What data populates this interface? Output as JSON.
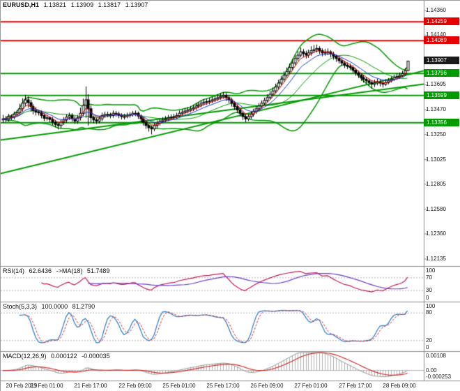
{
  "header": {
    "symbol": "EURUSD,H1",
    "open": "1.13821",
    "high": "1.13909",
    "low": "1.13817",
    "close": "1.13907"
  },
  "colors": {
    "background": "#ffffff",
    "candle_up_fill": "#ffffff",
    "candle_down_fill": "#000000",
    "candle_border": "#000000",
    "band_green": "#009b00",
    "trend_green": "#009b00",
    "resistance_red": "#e60000",
    "support_green": "#009b00",
    "current_price_badge": "#1a1a1a",
    "ma_fast_red": "#d40000",
    "ma_slow_blue": "#2033cc",
    "rsi_line": "#c2185b",
    "rsi_ma": "#6a3fc9",
    "stoch_main": "#2979c9",
    "stoch_signal": "#d32f2f",
    "macd_hist": "#b0b0b0",
    "macd_outline": "#9a9a9a",
    "macd_signal": "#d32f2f",
    "guide_dash": "#b5b5b5",
    "panel_border": "#8c8c8c",
    "axis_text": "#1a1a1a"
  },
  "panels": {
    "rsi": {
      "name": "RSI(14)",
      "value": "62.6436",
      "ma_name": "->MA(18)",
      "ma_value": "51.7489",
      "period": 14,
      "ma_period": 18,
      "guide_levels": [
        70,
        30
      ],
      "axis": [
        {
          "text": "100",
          "v": 100
        },
        {
          "text": "70",
          "v": 70
        },
        {
          "text": "30",
          "v": 30
        },
        {
          "text": "0",
          "v": 0
        }
      ]
    },
    "stoch": {
      "name": "Stoch(5,3,3)",
      "value": "100.0000",
      "signal_value": "81.2790",
      "k": 5,
      "slowing": 3,
      "d": 3,
      "guide_levels": [
        80,
        20
      ],
      "axis": [
        {
          "text": "100",
          "v": 100
        },
        {
          "text": "80",
          "v": 80
        },
        {
          "text": "20",
          "v": 20
        },
        {
          "text": "0",
          "v": 0
        }
      ]
    },
    "macd": {
      "name": "MACD(12,26,9)",
      "value": "0.000122",
      "signal_value": "-0.000035",
      "fast": 12,
      "slow": 26,
      "signal": 9,
      "axis": [
        {
          "text": "0.00108",
          "v": 0.00108
        },
        {
          "text": "0.00",
          "v": 0
        },
        {
          "text": "-0.000253",
          "v": -0.000253
        }
      ]
    }
  },
  "chart_data": {
    "type": "candlestick",
    "symbol": "EURUSD",
    "timeframe": "H1",
    "title": "EURUSD,H1 1.13821 1.13909 1.13817 1.13907",
    "price_axis": {
      "ticks": [
        {
          "text": "1.14360",
          "price": 1.1436
        },
        {
          "text": "1.14140",
          "price": 1.1414
        },
        {
          "text": "1.13695",
          "price": 1.13695
        },
        {
          "text": "1.13470",
          "price": 1.1347
        },
        {
          "text": "1.13250",
          "price": 1.1325
        },
        {
          "text": "1.13025",
          "price": 1.13025
        },
        {
          "text": "1.12805",
          "price": 1.12805
        },
        {
          "text": "1.12580",
          "price": 1.1258
        },
        {
          "text": "1.12360",
          "price": 1.1236
        },
        {
          "text": "1.12135",
          "price": 1.12135
        }
      ]
    },
    "badges": [
      {
        "text": "1.14259",
        "price": 1.14259,
        "color": "red",
        "role": "resistance"
      },
      {
        "text": "1.14089",
        "price": 1.14089,
        "color": "red",
        "role": "resistance"
      },
      {
        "text": "1.13907",
        "price": 1.13907,
        "color": "black",
        "role": "current-price"
      },
      {
        "text": "1.13796",
        "price": 1.13796,
        "color": "green",
        "role": "support"
      },
      {
        "text": "1.13599",
        "price": 1.13599,
        "color": "green",
        "role": "support"
      },
      {
        "text": "1.13356",
        "price": 1.13356,
        "color": "green",
        "role": "support"
      }
    ],
    "levels": {
      "resistance": [
        1.14259,
        1.14089
      ],
      "support": [
        1.13796,
        1.13599,
        1.13356
      ]
    },
    "trend_lines": [
      {
        "price_left": 1.129,
        "price_right": 1.1382
      },
      {
        "price_left": 1.132,
        "price_right": 1.137
      }
    ],
    "overlays": {
      "bollinger_period": 20,
      "bollinger_dev": 2,
      "ma_fast": 5,
      "ma_slow": 10
    },
    "time_labels": [
      {
        "index": 0,
        "text": "20 Feb 2019"
      },
      {
        "index": 16,
        "text": "21 Feb 01:00"
      },
      {
        "index": 32,
        "text": "21 Feb 17:00"
      },
      {
        "index": 48,
        "text": "22 Feb 09:00"
      },
      {
        "index": 64,
        "text": "25 Feb 01:00"
      },
      {
        "index": 80,
        "text": "25 Feb 17:00"
      },
      {
        "index": 96,
        "text": "26 Feb 09:00"
      },
      {
        "index": 112,
        "text": "27 Feb 01:00"
      },
      {
        "index": 128,
        "text": "27 Feb 17:00"
      },
      {
        "index": 144,
        "text": "28 Feb 09:00"
      }
    ],
    "candles": [
      [
        1.1338,
        1.13425,
        1.13355,
        1.1339
      ],
      [
        1.1339,
        1.13415,
        1.1336,
        1.13385
      ],
      [
        1.13385,
        1.13435,
        1.13365,
        1.1341
      ],
      [
        1.1341,
        1.1343,
        1.1338,
        1.13405
      ],
      [
        1.13405,
        1.13455,
        1.13385,
        1.1343
      ],
      [
        1.1343,
        1.1347,
        1.1341,
        1.13445
      ],
      [
        1.13445,
        1.13525,
        1.1342,
        1.1348
      ],
      [
        1.1348,
        1.13575,
        1.13455,
        1.1353
      ],
      [
        1.1353,
        1.13605,
        1.13505,
        1.1356
      ],
      [
        1.1356,
        1.1359,
        1.1349,
        1.13535
      ],
      [
        1.13535,
        1.1356,
        1.13455,
        1.135
      ],
      [
        1.135,
        1.1352,
        1.1343,
        1.13465
      ],
      [
        1.13465,
        1.13495,
        1.1342,
        1.1345
      ],
      [
        1.1345,
        1.1347,
        1.1342,
        1.13445
      ],
      [
        1.13445,
        1.13465,
        1.13395,
        1.1342
      ],
      [
        1.1342,
        1.1344,
        1.1337,
        1.13395
      ],
      [
        1.13395,
        1.13425,
        1.13375,
        1.134
      ],
      [
        1.134,
        1.1341,
        1.1336,
        1.13385
      ],
      [
        1.13385,
        1.13405,
        1.13335,
        1.1336
      ],
      [
        1.1336,
        1.1338,
        1.13315,
        1.1334
      ],
      [
        1.1334,
        1.13355,
        1.13295,
        1.1333
      ],
      [
        1.1333,
        1.13385,
        1.13305,
        1.1336
      ],
      [
        1.1336,
        1.13405,
        1.13335,
        1.1338
      ],
      [
        1.1338,
        1.1343,
        1.13355,
        1.13405
      ],
      [
        1.13405,
        1.13445,
        1.1338,
        1.1342
      ],
      [
        1.1342,
        1.1344,
        1.13365,
        1.1339
      ],
      [
        1.1339,
        1.13415,
        1.13345,
        1.1337
      ],
      [
        1.1337,
        1.13425,
        1.13345,
        1.134
      ],
      [
        1.134,
        1.1349,
        1.13375,
        1.1344
      ],
      [
        1.1344,
        1.1357,
        1.13415,
        1.1351
      ],
      [
        1.1351,
        1.1368,
        1.134,
        1.1356
      ],
      [
        1.1356,
        1.1361,
        1.1333,
        1.1348
      ],
      [
        1.1348,
        1.1351,
        1.1336,
        1.134
      ],
      [
        1.134,
        1.1342,
        1.1335,
        1.1338
      ],
      [
        1.1338,
        1.134,
        1.13345,
        1.1337
      ],
      [
        1.1337,
        1.13415,
        1.1335,
        1.1339
      ],
      [
        1.1339,
        1.13445,
        1.1337,
        1.1342
      ],
      [
        1.1342,
        1.13455,
        1.134,
        1.1343
      ],
      [
        1.1343,
        1.13455,
        1.13405,
        1.1343
      ],
      [
        1.1343,
        1.13445,
        1.13395,
        1.1342
      ],
      [
        1.1342,
        1.13465,
        1.134,
        1.1344
      ],
      [
        1.1344,
        1.1346,
        1.1341,
        1.13435
      ],
      [
        1.13435,
        1.13455,
        1.13395,
        1.1342
      ],
      [
        1.1342,
        1.1344,
        1.13385,
        1.1341
      ],
      [
        1.1341,
        1.13435,
        1.13385,
        1.1341
      ],
      [
        1.1341,
        1.13445,
        1.13395,
        1.1342
      ],
      [
        1.1342,
        1.1345,
        1.134,
        1.13425
      ],
      [
        1.13425,
        1.1346,
        1.1341,
        1.1344
      ],
      [
        1.1344,
        1.13465,
        1.13415,
        1.1344
      ],
      [
        1.1344,
        1.13455,
        1.1339,
        1.13415
      ],
      [
        1.13415,
        1.1343,
        1.1336,
        1.1339
      ],
      [
        1.1339,
        1.13405,
        1.1333,
        1.1336
      ],
      [
        1.1336,
        1.13375,
        1.133,
        1.1333
      ],
      [
        1.1333,
        1.13345,
        1.13275,
        1.1331
      ],
      [
        1.1331,
        1.1333,
        1.1325,
        1.133
      ],
      [
        1.133,
        1.13355,
        1.1328,
        1.1333
      ],
      [
        1.1333,
        1.13375,
        1.13305,
        1.1335
      ],
      [
        1.1335,
        1.13395,
        1.1333,
        1.1337
      ],
      [
        1.1337,
        1.13405,
        1.1335,
        1.1338
      ],
      [
        1.1338,
        1.13415,
        1.1336,
        1.1339
      ],
      [
        1.1339,
        1.13425,
        1.1337,
        1.134
      ],
      [
        1.134,
        1.1343,
        1.1338,
        1.13405
      ],
      [
        1.13405,
        1.13435,
        1.13385,
        1.1341
      ],
      [
        1.1341,
        1.13445,
        1.1339,
        1.1342
      ],
      [
        1.1342,
        1.13465,
        1.13405,
        1.1344
      ],
      [
        1.1344,
        1.13475,
        1.1342,
        1.1345
      ],
      [
        1.1345,
        1.13485,
        1.1343,
        1.1346
      ],
      [
        1.1346,
        1.13495,
        1.1344,
        1.1347
      ],
      [
        1.1347,
        1.13505,
        1.1345,
        1.1348
      ],
      [
        1.1348,
        1.13515,
        1.1346,
        1.1349
      ],
      [
        1.1349,
        1.1353,
        1.1347,
        1.13505
      ],
      [
        1.13505,
        1.1354,
        1.13485,
        1.13515
      ],
      [
        1.13515,
        1.13555,
        1.13495,
        1.1353
      ],
      [
        1.1353,
        1.13565,
        1.1351,
        1.1354
      ],
      [
        1.1354,
        1.1357,
        1.13515,
        1.13545
      ],
      [
        1.13545,
        1.13575,
        1.1352,
        1.1355
      ],
      [
        1.1355,
        1.13585,
        1.1353,
        1.1356
      ],
      [
        1.1356,
        1.13595,
        1.1354,
        1.1357
      ],
      [
        1.1357,
        1.1361,
        1.1355,
        1.1358
      ],
      [
        1.1358,
        1.1362,
        1.1356,
        1.1359
      ],
      [
        1.1359,
        1.1363,
        1.1357,
        1.136
      ],
      [
        1.136,
        1.1362,
        1.1355,
        1.1358
      ],
      [
        1.1358,
        1.136,
        1.1353,
        1.1356
      ],
      [
        1.1356,
        1.1358,
        1.135,
        1.1353
      ],
      [
        1.1353,
        1.1355,
        1.1347,
        1.135
      ],
      [
        1.135,
        1.1352,
        1.1344,
        1.1347
      ],
      [
        1.1347,
        1.1349,
        1.1341,
        1.1344
      ],
      [
        1.1344,
        1.1346,
        1.1338,
        1.1341
      ],
      [
        1.1341,
        1.1343,
        1.1336,
        1.1339
      ],
      [
        1.1339,
        1.13435,
        1.1337,
        1.1341
      ],
      [
        1.1341,
        1.13455,
        1.1339,
        1.1343
      ],
      [
        1.1343,
        1.1348,
        1.1341,
        1.13455
      ],
      [
        1.13455,
        1.13505,
        1.13435,
        1.1348
      ],
      [
        1.1348,
        1.1353,
        1.1346,
        1.13505
      ],
      [
        1.13505,
        1.13555,
        1.13485,
        1.1353
      ],
      [
        1.1353,
        1.1358,
        1.1351,
        1.13555
      ],
      [
        1.13555,
        1.1361,
        1.13535,
        1.1358
      ],
      [
        1.1358,
        1.1364,
        1.1356,
        1.1361
      ],
      [
        1.1361,
        1.1367,
        1.1359,
        1.1364
      ],
      [
        1.1364,
        1.13705,
        1.1362,
        1.13675
      ],
      [
        1.13675,
        1.1374,
        1.13655,
        1.1371
      ],
      [
        1.1371,
        1.13775,
        1.1369,
        1.13745
      ],
      [
        1.13745,
        1.13815,
        1.13725,
        1.1378
      ],
      [
        1.1378,
        1.1385,
        1.1376,
        1.13815
      ],
      [
        1.13815,
        1.13885,
        1.13795,
        1.1385
      ],
      [
        1.1385,
        1.13925,
        1.1383,
        1.1389
      ],
      [
        1.1389,
        1.13965,
        1.1387,
        1.1393
      ],
      [
        1.1393,
        1.13995,
        1.1391,
        1.1396
      ],
      [
        1.1396,
        1.1403,
        1.1394,
        1.1399
      ],
      [
        1.1399,
        1.14015,
        1.13945,
        1.13975
      ],
      [
        1.13975,
        1.14,
        1.1393,
        1.1396
      ],
      [
        1.1396,
        1.1401,
        1.13935,
        1.1398
      ],
      [
        1.1398,
        1.1404,
        1.13955,
        1.14
      ],
      [
        1.14,
        1.1405,
        1.1398,
        1.1401
      ],
      [
        1.1401,
        1.14055,
        1.13985,
        1.1402
      ],
      [
        1.1402,
        1.1404,
        1.1397,
        1.14
      ],
      [
        1.14,
        1.1402,
        1.1395,
        1.1398
      ],
      [
        1.1398,
        1.14015,
        1.13955,
        1.13985
      ],
      [
        1.13985,
        1.1402,
        1.1396,
        1.1399
      ],
      [
        1.1399,
        1.14005,
        1.1394,
        1.1397
      ],
      [
        1.1397,
        1.1399,
        1.1392,
        1.1395
      ],
      [
        1.1395,
        1.13965,
        1.139,
        1.1393
      ],
      [
        1.1393,
        1.1395,
        1.13885,
        1.1391
      ],
      [
        1.1391,
        1.1393,
        1.13865,
        1.1389
      ],
      [
        1.1389,
        1.1391,
        1.13845,
        1.1387
      ],
      [
        1.1387,
        1.13895,
        1.13835,
        1.1386
      ],
      [
        1.1386,
        1.13885,
        1.13825,
        1.1385
      ],
      [
        1.1385,
        1.1387,
        1.138,
        1.13825
      ],
      [
        1.13825,
        1.13845,
        1.13775,
        1.138
      ],
      [
        1.138,
        1.1382,
        1.13755,
        1.1378
      ],
      [
        1.1378,
        1.138,
        1.1373,
        1.1376
      ],
      [
        1.1376,
        1.1378,
        1.13715,
        1.13745
      ],
      [
        1.13745,
        1.13765,
        1.137,
        1.1373
      ],
      [
        1.1373,
        1.1375,
        1.13685,
        1.13715
      ],
      [
        1.13715,
        1.13735,
        1.1366,
        1.137
      ],
      [
        1.137,
        1.1374,
        1.13675,
        1.1371
      ],
      [
        1.1371,
        1.1375,
        1.1369,
        1.1372
      ],
      [
        1.1372,
        1.1374,
        1.1368,
        1.1371
      ],
      [
        1.1371,
        1.1373,
        1.1367,
        1.137
      ],
      [
        1.137,
        1.13745,
        1.13685,
        1.13715
      ],
      [
        1.13715,
        1.13755,
        1.137,
        1.1373
      ],
      [
        1.1373,
        1.1377,
        1.13715,
        1.13745
      ],
      [
        1.13745,
        1.13785,
        1.1373,
        1.1376
      ],
      [
        1.1376,
        1.13795,
        1.1374,
        1.1377
      ],
      [
        1.1377,
        1.13805,
        1.1375,
        1.1378
      ],
      [
        1.1378,
        1.1382,
        1.13765,
        1.13795
      ],
      [
        1.13795,
        1.13845,
        1.13775,
        1.13821
      ],
      [
        1.13821,
        1.13909,
        1.13817,
        1.13907
      ]
    ]
  }
}
